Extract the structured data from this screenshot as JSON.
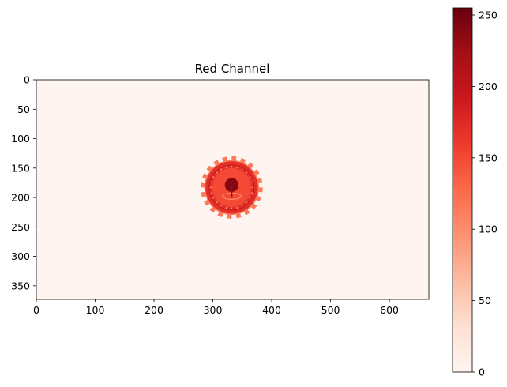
{
  "chart_data": {
    "type": "heatmap",
    "title": "Red Channel",
    "xlabel": "",
    "ylabel": "",
    "image_width": 667,
    "image_height": 373,
    "xlim": [
      0,
      667
    ],
    "ylim": [
      373,
      0
    ],
    "x_ticks": [
      0,
      100,
      200,
      300,
      400,
      500,
      600
    ],
    "y_ticks": [
      0,
      50,
      100,
      150,
      200,
      250,
      300,
      350
    ],
    "colormap": "Reds",
    "background_value": 0,
    "colorbar": {
      "min": 0,
      "max": 255,
      "ticks": [
        0,
        50,
        100,
        150,
        200,
        250
      ],
      "stops": [
        "#fff5f0",
        "#fee0d2",
        "#fcbba1",
        "#fc9272",
        "#fb6a4a",
        "#ef3b2c",
        "#cb181d",
        "#a50f15",
        "#67000d"
      ]
    },
    "emblem": {
      "center_x": 332,
      "center_y": 183,
      "outer_radius": 53,
      "gear_teeth": 20,
      "gear_value": 115,
      "ring_value": 170,
      "inner_value": 150,
      "core_value": 240
    }
  }
}
